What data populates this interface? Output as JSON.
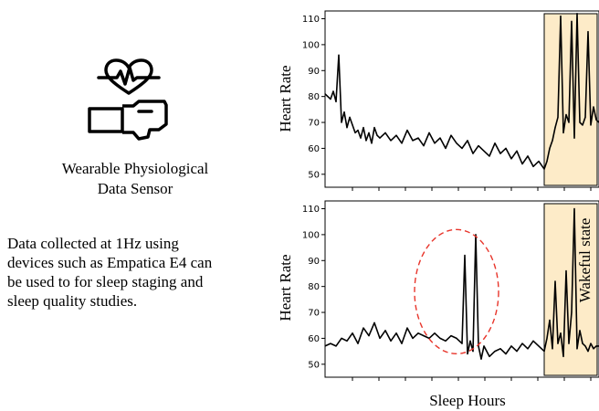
{
  "sensor": {
    "icon": "heart-rate-wristband-icon",
    "caption_line1": "Wearable Physiological",
    "caption_line2": "Data Sensor"
  },
  "description": {
    "lines": [
      "Data collected at 1Hz using",
      "devices such as Empatica E4 can",
      "be used to for sleep staging and",
      "sleep quality studies."
    ]
  },
  "colors": {
    "line": "#000000",
    "wake_shade": "#fdebc8",
    "anomaly_ellipse": "#e8352b"
  },
  "chart_data": [
    {
      "type": "line",
      "title": "",
      "xlabel": "",
      "ylabel": "Heart Rate",
      "ylim": [
        45,
        113
      ],
      "yticks": [
        50,
        60,
        70,
        80,
        90,
        100,
        110
      ],
      "xlim": [
        0,
        100
      ],
      "x_tick_labels_shown": false,
      "highlight_region": {
        "x_start": 80,
        "x_end": 100
      },
      "series": [
        {
          "x": [
            0,
            1,
            2,
            3,
            4,
            5,
            6,
            7,
            8,
            9,
            10,
            11,
            12,
            13,
            14,
            15,
            16,
            17,
            18,
            19,
            20,
            22,
            24,
            26,
            28,
            30,
            32,
            34,
            36,
            38,
            40,
            42,
            44,
            46,
            48,
            50,
            52,
            54,
            56,
            58,
            60,
            62,
            64,
            66,
            68,
            70,
            72,
            74,
            76,
            78,
            80,
            81,
            82,
            83,
            84,
            85,
            86,
            87,
            88,
            89,
            90,
            91,
            92,
            93,
            94,
            95,
            96,
            97,
            98,
            99,
            100
          ],
          "y": [
            81,
            80,
            79,
            82,
            78,
            96,
            70,
            74,
            68,
            72,
            69,
            66,
            67,
            64,
            68,
            63,
            66,
            62,
            68,
            65,
            64,
            66,
            63,
            65,
            62,
            67,
            63,
            64,
            61,
            66,
            62,
            64,
            60,
            65,
            62,
            60,
            63,
            58,
            61,
            59,
            57,
            62,
            58,
            60,
            56,
            59,
            54,
            57,
            53,
            55,
            52,
            55,
            60,
            63,
            68,
            72,
            111,
            66,
            73,
            70,
            109,
            64,
            112,
            70,
            69,
            72,
            105,
            69,
            76,
            71,
            70
          ]
        }
      ]
    },
    {
      "type": "line",
      "title": "",
      "xlabel": "Sleep Hours",
      "ylabel": "Heart Rate",
      "ylim": [
        45,
        113
      ],
      "yticks": [
        50,
        60,
        70,
        80,
        90,
        100,
        110
      ],
      "xlim": [
        0,
        100
      ],
      "x_tick_labels_shown": false,
      "highlight_region": {
        "x_start": 80,
        "x_end": 100,
        "label": "Wakeful state"
      },
      "series": [
        {
          "x": [
            0,
            2,
            4,
            6,
            8,
            10,
            12,
            14,
            16,
            18,
            20,
            22,
            24,
            26,
            28,
            30,
            32,
            34,
            36,
            38,
            40,
            42,
            44,
            46,
            48,
            50,
            51,
            52,
            53,
            54,
            55,
            56,
            57,
            58,
            60,
            62,
            64,
            66,
            68,
            70,
            72,
            74,
            76,
            78,
            80,
            81,
            82,
            83,
            84,
            85,
            86,
            87,
            88,
            89,
            90,
            91,
            92,
            93,
            94,
            95,
            96,
            97,
            98,
            99,
            100
          ],
          "y": [
            57,
            58,
            57,
            60,
            59,
            62,
            58,
            64,
            61,
            66,
            60,
            63,
            59,
            62,
            58,
            64,
            60,
            62,
            61,
            60,
            62,
            60,
            59,
            61,
            60,
            58,
            92,
            54,
            59,
            55,
            100,
            57,
            52,
            57,
            53,
            55,
            56,
            54,
            57,
            55,
            58,
            56,
            59,
            57,
            55,
            60,
            67,
            56,
            82,
            58,
            62,
            53,
            86,
            58,
            70,
            110,
            56,
            63,
            58,
            57,
            55,
            58,
            56,
            57,
            57
          ]
        }
      ],
      "annotations": [
        "anomaly-ellipse"
      ]
    }
  ],
  "plot_labels": {
    "wake_label": "Wakeful state",
    "x_axis_title": "Sleep Hours",
    "y_axis_title_top": "Heart Rate",
    "y_axis_title_bottom": "Heart Rate"
  }
}
